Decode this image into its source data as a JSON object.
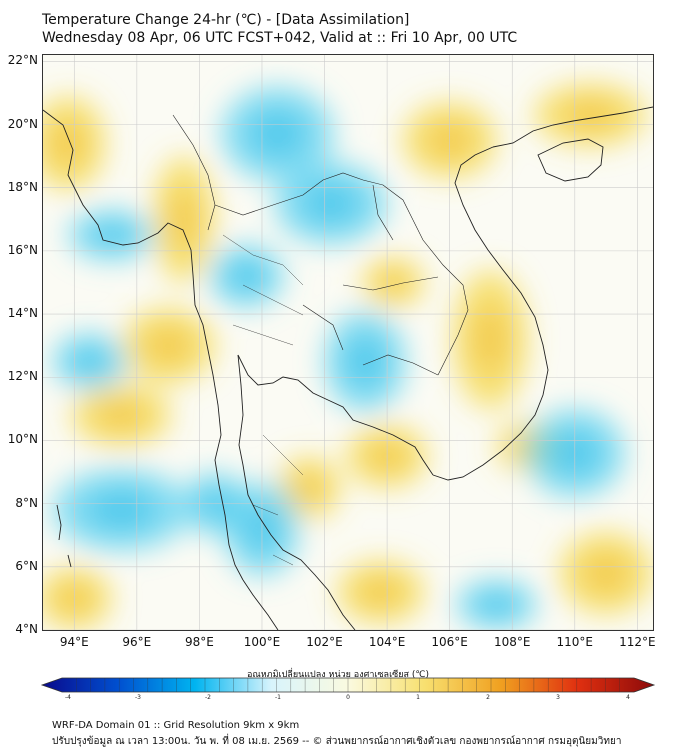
{
  "title_line1": "Temperature Change 24-hr (℃) - [Data Assimilation]",
  "title_line2": "Wednesday 08 Apr, 06 UTC FCST+042, Valid at :: Fri 10 Apr, 00 UTC",
  "map": {
    "lon_range": [
      93,
      112.5
    ],
    "lat_range": [
      4,
      22.2
    ],
    "lat_ticks": [
      {
        "value": 22,
        "label": "22°N"
      },
      {
        "value": 20,
        "label": "20°N"
      },
      {
        "value": 18,
        "label": "18°N"
      },
      {
        "value": 16,
        "label": "16°N"
      },
      {
        "value": 14,
        "label": "14°N"
      },
      {
        "value": 12,
        "label": "12°N"
      },
      {
        "value": 10,
        "label": "10°N"
      },
      {
        "value": 8,
        "label": "8°N"
      },
      {
        "value": 6,
        "label": "6°N"
      },
      {
        "value": 4,
        "label": "4°N"
      }
    ],
    "lon_ticks": [
      {
        "value": 94,
        "label": "94°E"
      },
      {
        "value": 96,
        "label": "96°E"
      },
      {
        "value": 98,
        "label": "98°E"
      },
      {
        "value": 100,
        "label": "100°E"
      },
      {
        "value": 102,
        "label": "102°E"
      },
      {
        "value": 104,
        "label": "104°E"
      },
      {
        "value": 106,
        "label": "106°E"
      },
      {
        "value": 108,
        "label": "108°E"
      },
      {
        "value": 110,
        "label": "110°E"
      },
      {
        "value": 112,
        "label": "112°E"
      }
    ],
    "warm_areas": [
      {
        "lon": 93.8,
        "lat": 19.4,
        "rx": 1.2,
        "ry": 1.5
      },
      {
        "lon": 97.5,
        "lat": 17.0,
        "rx": 1.0,
        "ry": 2.0
      },
      {
        "lon": 106.0,
        "lat": 19.5,
        "rx": 1.5,
        "ry": 1.2
      },
      {
        "lon": 110.5,
        "lat": 20.3,
        "rx": 1.8,
        "ry": 1.0
      },
      {
        "lon": 104.2,
        "lat": 15.0,
        "rx": 1.0,
        "ry": 0.8
      },
      {
        "lon": 107.3,
        "lat": 13.2,
        "rx": 1.2,
        "ry": 2.2
      },
      {
        "lon": 104.0,
        "lat": 9.5,
        "rx": 1.3,
        "ry": 1.0
      },
      {
        "lon": 97.0,
        "lat": 13.0,
        "rx": 1.5,
        "ry": 1.2
      },
      {
        "lon": 95.5,
        "lat": 10.8,
        "rx": 1.6,
        "ry": 1.0
      },
      {
        "lon": 101.5,
        "lat": 8.5,
        "rx": 1.0,
        "ry": 1.0
      },
      {
        "lon": 94.0,
        "lat": 5.0,
        "rx": 1.2,
        "ry": 1.0
      },
      {
        "lon": 111.0,
        "lat": 5.8,
        "rx": 1.5,
        "ry": 1.3
      },
      {
        "lon": 103.8,
        "lat": 5.2,
        "rx": 1.4,
        "ry": 1.0
      },
      {
        "lon": 108.5,
        "lat": 9.8,
        "rx": 1.0,
        "ry": 0.8
      }
    ],
    "cool_areas": [
      {
        "lon": 102.2,
        "lat": 17.5,
        "rx": 1.8,
        "ry": 1.3
      },
      {
        "lon": 100.5,
        "lat": 19.7,
        "rx": 1.8,
        "ry": 1.5
      },
      {
        "lon": 95.2,
        "lat": 16.5,
        "rx": 1.4,
        "ry": 0.8
      },
      {
        "lon": 103.3,
        "lat": 12.5,
        "rx": 1.3,
        "ry": 1.6
      },
      {
        "lon": 100.0,
        "lat": 7.2,
        "rx": 1.2,
        "ry": 1.5
      },
      {
        "lon": 95.5,
        "lat": 7.8,
        "rx": 2.2,
        "ry": 1.3
      },
      {
        "lon": 110.0,
        "lat": 9.6,
        "rx": 1.6,
        "ry": 1.4
      },
      {
        "lon": 94.5,
        "lat": 12.5,
        "rx": 1.2,
        "ry": 0.9
      },
      {
        "lon": 98.5,
        "lat": 8.0,
        "rx": 1.0,
        "ry": 1.0
      },
      {
        "lon": 107.5,
        "lat": 4.8,
        "rx": 1.3,
        "ry": 0.8
      },
      {
        "lon": 99.5,
        "lat": 15.2,
        "rx": 1.2,
        "ry": 1.0
      }
    ]
  },
  "colorbar": {
    "label": "อุณหภูมิเปลี่ยนแปลง หน่วย องศาเซลเซียส (℃)",
    "min": -4,
    "max": 4,
    "ticks": [
      "-4",
      "-3",
      "-2",
      "-1",
      "0",
      "1",
      "2",
      "3",
      "4"
    ],
    "colors": [
      "#0a0a8c",
      "#0050d0",
      "#00b4f0",
      "#d8f4fc",
      "#fafae0",
      "#f8e070",
      "#f0a020",
      "#e03010",
      "#8c0a0a"
    ]
  },
  "footer_line1": "WRF-DA Domain 01 :: Grid Resolution 9km x 9km",
  "footer_line2": "ปรับปรุงข้อมูล ณ เวลา 13:00น. วัน พ. ที่ 08 เม.ย. 2569 -- © ส่วนพยากรณ์อากาศเชิงตัวเลข กองพยากรณ์อากาศ กรมอุตุนิยมวิทยา"
}
